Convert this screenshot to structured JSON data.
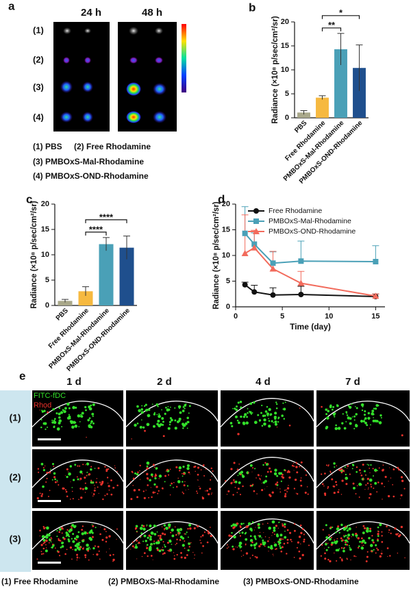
{
  "panel_labels": [
    "a",
    "b",
    "c",
    "d",
    "e"
  ],
  "panel_a": {
    "columns": [
      "24 h",
      "48 h"
    ],
    "rows": [
      "(1)",
      "(2)",
      "(3)",
      "(4)"
    ],
    "legend": [
      "(1) PBS",
      "(2) Free Rhodamine",
      "(3) PMBOxS-Mal-Rhodamine",
      "(4) PMBOxS-OND-Rhodamine"
    ]
  },
  "panel_e": {
    "columns": [
      "1 d",
      "2 d",
      "4 d",
      "7 d"
    ],
    "channels": [
      {
        "name": "FITC-fDC",
        "color": "#33e02a"
      },
      {
        "name": "Rhod",
        "color": "#e8312a"
      }
    ],
    "rows": [
      "(1)",
      "(2)",
      "(3)"
    ],
    "legend": [
      "(1) Free Rhodamine",
      "(2) PMBOxS-Mal-Rhodamine",
      "(3) PMBOxS-OND-Rhodamine"
    ]
  },
  "chart_data": [
    {
      "type": "bar",
      "ylabel": "Radiance (×10⁸ p/sec/cm²/sr)",
      "categories": [
        "PBS",
        "Free Rhodamine",
        "PMBOxS-Mal-Rhodamine",
        "PMBOxS-OND-Rhodamine"
      ],
      "values": [
        1.1,
        4.2,
        14.3,
        10.4
      ],
      "errors": [
        0.4,
        0.4,
        3.3,
        4.8
      ],
      "colors": [
        "#a9a88a",
        "#f6b940",
        "#4aa0b7",
        "#1f4f8d"
      ],
      "ylim": [
        0,
        20
      ],
      "yticks": [
        0,
        5,
        10,
        15,
        20
      ],
      "annotations": [
        {
          "text": "**",
          "between": [
            "Free Rhodamine",
            "PMBOxS-Mal-Rhodamine"
          ]
        },
        {
          "text": "*",
          "between": [
            "Free Rhodamine",
            "PMBOxS-OND-Rhodamine"
          ]
        }
      ]
    },
    {
      "type": "bar",
      "ylabel": "Radiance (×10⁸ p/sec/cm²/sr)",
      "categories": [
        "PBS",
        "Free Rhodamine",
        "PMBOxS-Mal-Rhodamine",
        "PMBOxS-OND-Rhodamine"
      ],
      "values": [
        0.9,
        2.8,
        12.1,
        11.4
      ],
      "errors": [
        0.3,
        0.9,
        1.3,
        2.3
      ],
      "colors": [
        "#a9a88a",
        "#f6b940",
        "#4aa0b7",
        "#1f4f8d"
      ],
      "ylim": [
        0,
        20
      ],
      "yticks": [
        0,
        5,
        10,
        15,
        20
      ],
      "annotations": [
        {
          "text": "****",
          "between": [
            "Free Rhodamine",
            "PMBOxS-Mal-Rhodamine"
          ]
        },
        {
          "text": "****",
          "between": [
            "Free Rhodamine",
            "PMBOxS-OND-Rhodamine"
          ]
        }
      ]
    },
    {
      "type": "line",
      "ylabel": "Radiance (×10⁸ p/sec/cm²/sr)",
      "xlabel": "Time (day)",
      "x": [
        1,
        2,
        4,
        7,
        15
      ],
      "xlim": [
        0,
        16
      ],
      "xticks": [
        0,
        5,
        10,
        15
      ],
      "ylim": [
        0,
        20
      ],
      "yticks": [
        0,
        5,
        10,
        15,
        20
      ],
      "legend": "upper right",
      "series": [
        {
          "name": "Free Rhodamine",
          "color": "#111111",
          "marker": "circle",
          "values": [
            4.3,
            2.9,
            2.3,
            2.4,
            2.0
          ],
          "errors": [
            0.5,
            1.3,
            1.4,
            1.6,
            0.5
          ]
        },
        {
          "name": "PMBOxS-Mal-Rhodamine",
          "color": "#4aa0b7",
          "marker": "square",
          "values": [
            14.3,
            12.2,
            8.5,
            8.9,
            8.8
          ],
          "errors": [
            5.2,
            2.2,
            2.2,
            3.9,
            3.1
          ]
        },
        {
          "name": "PMBOxS-OND-Rhodamine",
          "color": "#f26b5c",
          "marker": "triangle",
          "values": [
            10.4,
            11.5,
            7.4,
            4.6,
            2.1
          ],
          "errors": [
            7.5,
            3.4,
            3.4,
            2.3,
            0.4
          ]
        }
      ]
    }
  ]
}
